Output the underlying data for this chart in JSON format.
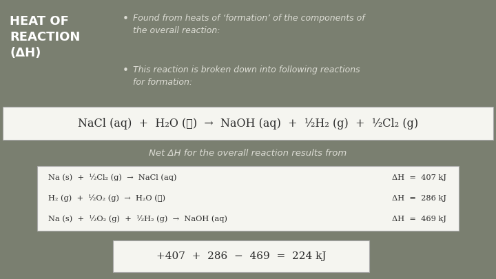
{
  "bg_color": "#7a7f70",
  "title_text": "HEAT OF\nREACTION\n(ΔH)",
  "title_color": "#ffffff",
  "bullet1": "Found from heats of ‘formation’ of the components of\nthe overall reaction:",
  "bullet2": "This reaction is broken down into following reactions\nfor formation:",
  "main_eq": "NaCl (aq)  +  H₂O (ℓ)  →  NaOH (aq)  +  ½H₂ (g)  +  ½Cl₂ (g)",
  "net_label": "Net ΔH for the overall reaction results from",
  "eq1_left": "Na (s)  +  ½Cl₂ (g)  →  NaCl (aq)",
  "eq1_right": "ΔH  =  407 kJ",
  "eq2_left": "H₂ (g)  +  ½O₂ (g)  →  H₂O (ℓ)",
  "eq2_right": "ΔH  =  286 kJ",
  "eq3_left": "Na (s)  +  ½O₂ (g)  +  ½H₂ (g)  →  NaOH (aq)",
  "eq3_right": "ΔH  =  469 kJ",
  "final_eq": "+407  +  286  −  469  =  224 kJ",
  "white_box_color": "#f5f5f0",
  "text_color_dark": "#2b2b2b",
  "bullet_color": "#ddddd5"
}
